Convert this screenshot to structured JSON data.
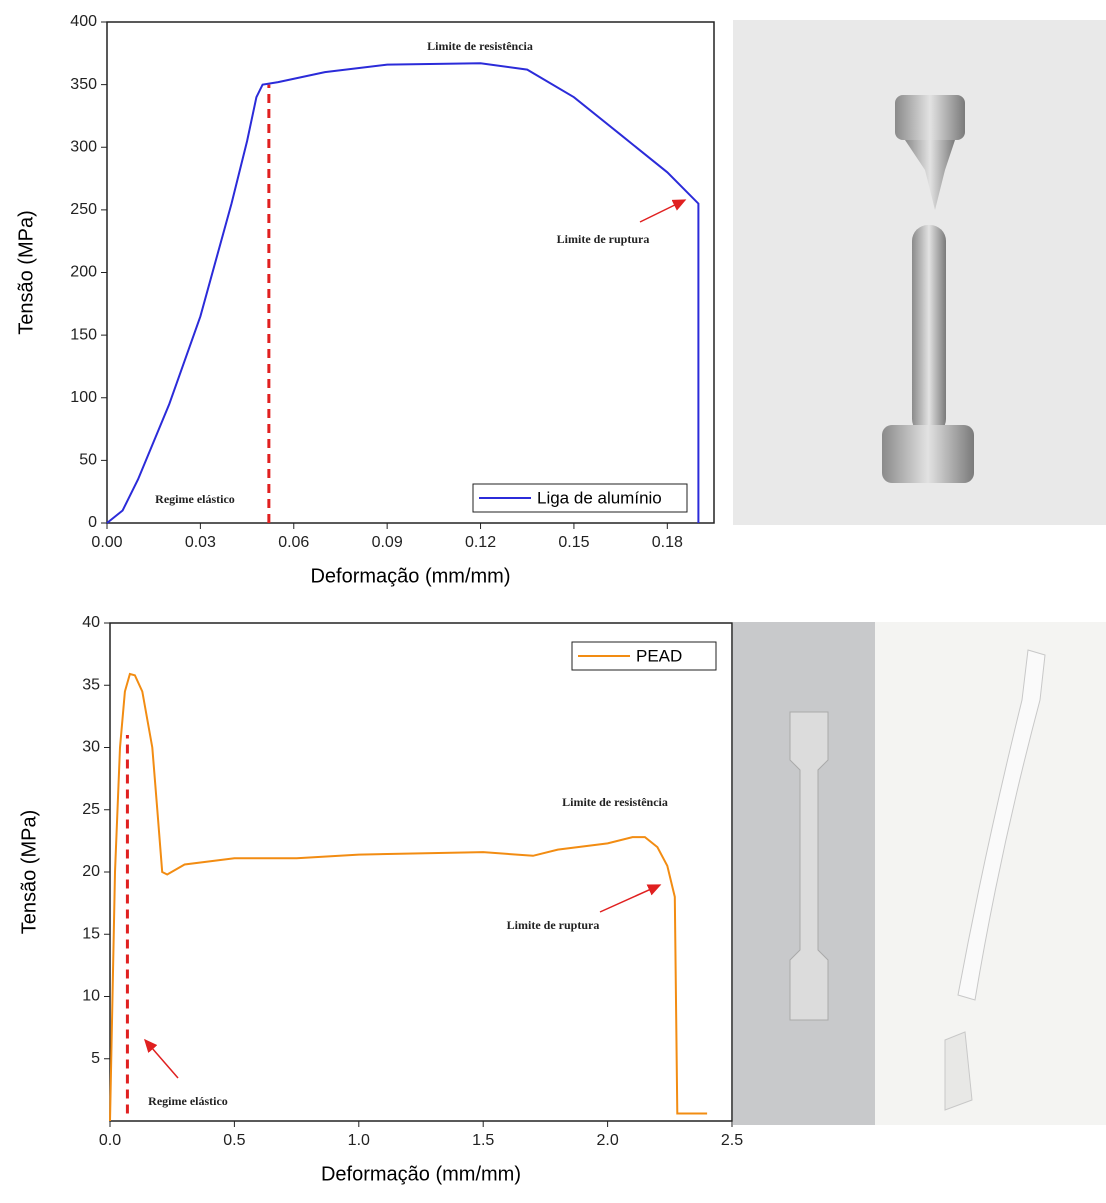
{
  "chart_data": [
    {
      "type": "line",
      "xlabel": "Deformação (mm/mm)",
      "ylabel": "Tensão (MPa)",
      "xlim": [
        0,
        0.195
      ],
      "ylim": [
        0,
        400
      ],
      "xticks": [
        {
          "value": 0,
          "label": "0.00"
        },
        0.03,
        0.06,
        0.09,
        0.12,
        0.15,
        0.18
      ],
      "yticks": [
        0,
        50,
        100,
        150,
        200,
        250,
        300,
        350,
        400
      ],
      "legend": "lower right",
      "series": [
        {
          "name": "Liga de alumínio",
          "color": "#2b2bd9",
          "x": [
            0,
            0.005,
            0.01,
            0.02,
            0.03,
            0.04,
            0.045,
            0.048,
            0.05,
            0.055,
            0.07,
            0.09,
            0.12,
            0.135,
            0.15,
            0.165,
            0.18,
            0.19,
            0.19
          ],
          "values": [
            0,
            10,
            35,
            95,
            165,
            255,
            305,
            340,
            350,
            352,
            360,
            366,
            367,
            362,
            340,
            310,
            280,
            255,
            0
          ]
        }
      ],
      "vline": {
        "x": 0.052,
        "y": [
          0,
          350
        ],
        "color": "#e02020"
      },
      "annotations": [
        "Limite de resistência",
        "Limite de ruptura",
        "Regime elástico"
      ]
    },
    {
      "type": "line",
      "xlabel": "Deformação (mm/mm)",
      "ylabel": "Tensão (MPa)",
      "xlim": [
        0,
        2.5
      ],
      "ylim": [
        0,
        40
      ],
      "xticks": [
        {
          "value": 0,
          "label": "0.0"
        },
        0.5,
        {
          "value": 1,
          "label": "1.0"
        },
        1.5,
        {
          "value": 2,
          "label": "2.0"
        },
        2.5
      ],
      "yticks": [
        5,
        10,
        15,
        20,
        25,
        30,
        35,
        40
      ],
      "legend": "upper right",
      "series": [
        {
          "name": "PEAD",
          "color": "#f28c12",
          "x": [
            0,
            0.02,
            0.04,
            0.06,
            0.08,
            0.1,
            0.13,
            0.17,
            0.19,
            0.21,
            0.23,
            0.3,
            0.5,
            0.75,
            1.0,
            1.5,
            1.7,
            1.8,
            2.0,
            2.1,
            2.15,
            2.2,
            2.24,
            2.27,
            2.28,
            2.4
          ],
          "values": [
            0,
            20,
            30,
            34.5,
            35.9,
            35.8,
            34.5,
            30,
            25,
            20,
            19.8,
            20.6,
            21.1,
            21.1,
            21.4,
            21.6,
            21.3,
            21.8,
            22.3,
            22.8,
            22.8,
            22,
            20.5,
            18,
            0.6,
            0.6
          ]
        }
      ],
      "vline": {
        "x": 0.07,
        "y": [
          0.6,
          31
        ],
        "color": "#e02020"
      },
      "annotations": [
        "Limite de resistência",
        "Limite de ruptura",
        "Regime elástico"
      ]
    }
  ]
}
